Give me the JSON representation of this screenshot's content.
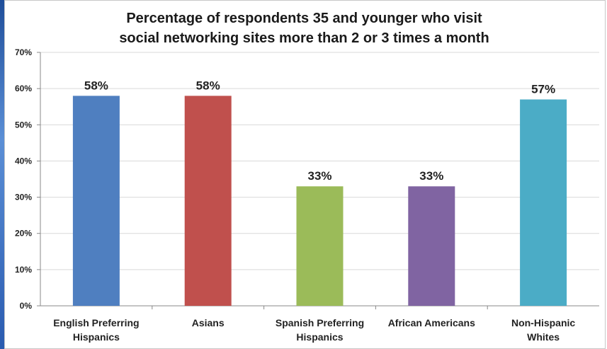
{
  "chart_data": {
    "type": "bar",
    "title_lines": [
      "Percentage of respondents 35 and younger who visit",
      "social networking sites more than 2 or 3 times a month"
    ],
    "categories": [
      [
        "English Preferring",
        "Hispanics"
      ],
      [
        "Asians"
      ],
      [
        "Spanish Preferring",
        "Hispanics"
      ],
      [
        "African Americans"
      ],
      [
        "Non-Hispanic",
        "Whites"
      ]
    ],
    "values": [
      58,
      58,
      33,
      33,
      57
    ],
    "data_labels": [
      "58%",
      "58%",
      "33%",
      "33%",
      "57%"
    ],
    "colors": [
      "#4f7fc0",
      "#c0504d",
      "#9bbb59",
      "#8064a2",
      "#4bacc6"
    ],
    "yticks": [
      "0%",
      "10%",
      "20%",
      "30%",
      "40%",
      "50%",
      "60%",
      "70%"
    ],
    "ylim": [
      0,
      70
    ],
    "grid": true,
    "legend": "none"
  }
}
